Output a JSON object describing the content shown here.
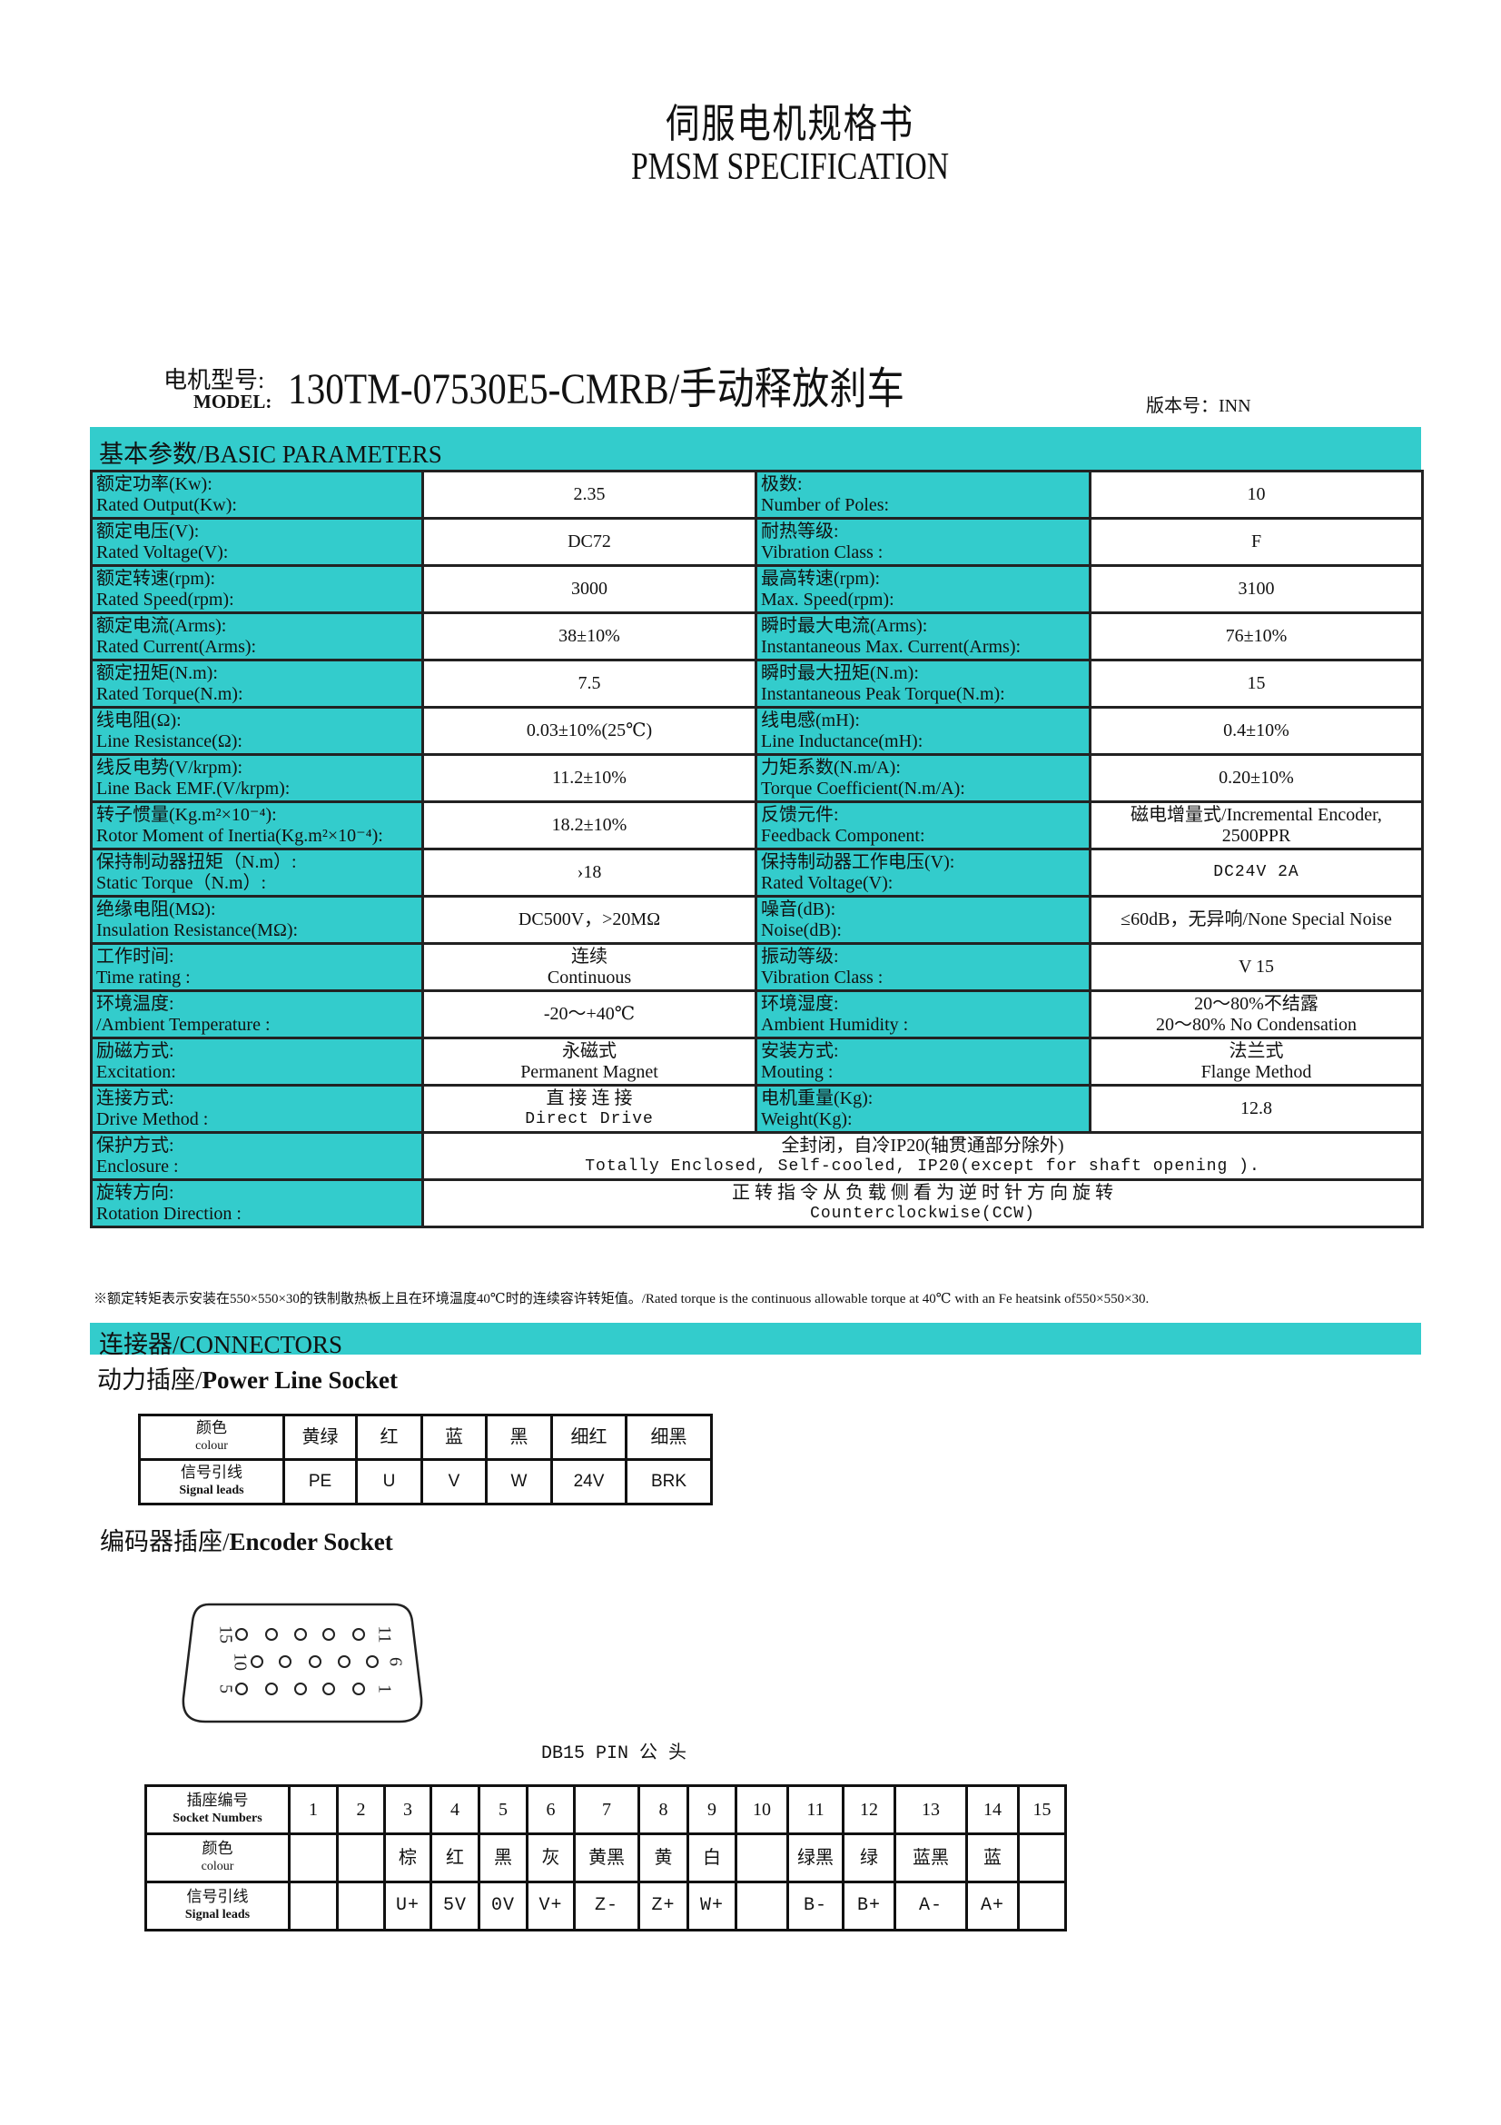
{
  "header": {
    "title": "伺服电机规格书",
    "subtitle": "PMSM SPECIFICATION",
    "model_label": "电机型号:",
    "model_label_en": "MODEL:",
    "model_value": "130TM-07530E5-CMRB/手动释放刹车",
    "version": "版本号：INN"
  },
  "basic": {
    "title": "基本参数/BASIC PARAMETERS",
    "rows": [
      {
        "l_cn": "额定功率(Kw):",
        "l_en": "Rated Output(Kw):",
        "l_val": [
          "2.35"
        ],
        "r_cn": "极数:",
        "r_en": "Number of Poles:",
        "r_val": [
          "10"
        ]
      },
      {
        "l_cn": "额定电压(V):",
        "l_en": "Rated Voltage(V):",
        "l_val": [
          "DC72"
        ],
        "r_cn": "耐热等级:",
        "r_en": "Vibration Class :",
        "r_val": [
          "F"
        ]
      },
      {
        "l_cn": "额定转速(rpm):",
        "l_en": "Rated Speed(rpm):",
        "l_val": [
          "3000"
        ],
        "r_cn": "最高转速(rpm):",
        "r_en": "Max. Speed(rpm):",
        "r_val": [
          "3100"
        ]
      },
      {
        "l_cn": "额定电流(Arms):",
        "l_en": "Rated Current(Arms):",
        "l_val": [
          "38±10%"
        ],
        "r_cn": "瞬时最大电流(Arms):",
        "r_en": "Instantaneous Max. Current(Arms):",
        "r_val": [
          "76±10%"
        ]
      },
      {
        "l_cn": "额定扭矩(N.m):",
        "l_en": "Rated Torque(N.m):",
        "l_val": [
          "7.5"
        ],
        "r_cn": "瞬时最大扭矩(N.m):",
        "r_en": "Instantaneous Peak Torque(N.m):",
        "r_val": [
          "15"
        ]
      },
      {
        "l_cn": "线电阻(Ω):",
        "l_en": "Line Resistance(Ω):",
        "l_val": [
          "0.03±10%(25℃)"
        ],
        "r_cn": "线电感(mH):",
        "r_en": "Line Inductance(mH):",
        "r_val": [
          "0.4±10%"
        ]
      },
      {
        "l_cn": "线反电势(V/krpm):",
        "l_en": "Line Back EMF.(V/krpm):",
        "l_val": [
          "11.2±10%"
        ],
        "r_cn": "力矩系数(N.m/A):",
        "r_en": "Torque Coefficient(N.m/A):",
        "r_val": [
          "0.20±10%"
        ]
      },
      {
        "l_cn": "转子惯量(Kg.m²×10⁻⁴):",
        "l_en": "Rotor Moment of Inertia(Kg.m²×10⁻⁴):",
        "l_val": [
          "18.2±10%"
        ],
        "r_cn": "反馈元件:",
        "r_en": "Feedback Component:",
        "r_val": [
          "磁电增量式/Incremental Encoder,",
          "2500PPR"
        ]
      },
      {
        "l_cn": "保持制动器扭矩（N.m）:",
        "l_en": "Static Torque（N.m）:",
        "l_val": [
          "›18"
        ],
        "r_cn": "保持制动器工作电压(V):",
        "r_en": "Rated Voltage(V):",
        "r_val": [
          "DC24V  2A"
        ],
        "r_mono": true
      },
      {
        "l_cn": "绝缘电阻(MΩ):",
        "l_en": "Insulation Resistance(MΩ):",
        "l_val": [
          "DC500V，>20MΩ"
        ],
        "r_cn": "噪音(dB):",
        "r_en": "Noise(dB):",
        "r_val": [
          "≤60dB，无异响/None Special Noise"
        ]
      },
      {
        "l_cn": "工作时间:",
        "l_en": "Time rating :",
        "l_val": [
          "连续",
          "Continuous"
        ],
        "r_cn": "振动等级:",
        "r_en": "Vibration Class :",
        "r_val": [
          "V 15"
        ]
      },
      {
        "l_cn": "环境温度:",
        "l_en": "/Ambient Temperature :",
        "l_val": [
          "-20～+40℃"
        ],
        "r_cn": "环境湿度:",
        "r_en": "Ambient Humidity :",
        "r_val": [
          "20～80%不结露",
          "20～80% No Condensation"
        ]
      },
      {
        "l_cn": "励磁方式:",
        "l_en": "Excitation:",
        "l_val": [
          "永磁式",
          "Permanent Magnet"
        ],
        "r_cn": "安装方式:",
        "r_en": "Mouting :",
        "r_val": [
          "法兰式",
          "Flange Method"
        ]
      },
      {
        "l_cn": "连接方式:",
        "l_en": "Drive Method :",
        "l_val": [
          "直 接 连 接",
          "Direct Drive"
        ],
        "l_mono": true,
        "r_cn": "电机重量(Kg):",
        "r_en": "Weight(Kg):",
        "r_val": [
          "12.8"
        ]
      },
      {
        "l_cn": "保护方式:",
        "l_en": "Enclosure :",
        "span_val": [
          "全封闭，自冷IP20(轴贯通部分除外)",
          "Totally Enclosed, Self-cooled, IP20(except for shaft opening )."
        ]
      },
      {
        "l_cn": "旋转方向:",
        "l_en": "Rotation Direction :",
        "span_val": [
          "正 转 指 令 从 负 载 侧 看 为 逆 时 针 方 向 旋 转",
          "Counterclockwise(CCW)"
        ]
      }
    ],
    "footnote": "※额定转矩表示安装在550×550×30的铁制散热板上且在环境温度40℃时的连续容许转矩值。/Rated torque is the continuous allowable torque at 40℃ with an Fe heatsink of550×550×30."
  },
  "connectors": {
    "title": "连接器/CONNECTORS",
    "power": {
      "title_cn": "动力插座/",
      "title_en": "Power Line Socket",
      "colour_label_cn": "颜色",
      "colour_label_en": "colour",
      "signal_label_cn": "信号引线",
      "signal_label_en": "Signal leads",
      "colours": [
        "黄绿",
        "红",
        "蓝",
        "黑",
        "细红",
        "细黑"
      ],
      "signals": [
        "PE",
        "U",
        "V",
        "W",
        "24V",
        "BRK"
      ]
    },
    "encoder": {
      "title_cn": "编码器插座/",
      "title_en": "Encoder Socket",
      "diagram_label": "DB15 PIN 公 头",
      "pin_labels": [
        "15",
        "10",
        "5",
        "11",
        "6",
        "1"
      ],
      "socket_label_cn": "插座编号",
      "socket_label_en": "Socket Numbers",
      "colour_label_cn": "颜色",
      "colour_label_en": "colour",
      "signal_label_cn": "信号引线",
      "signal_label_en": "Signal leads",
      "numbers": [
        "1",
        "2",
        "3",
        "4",
        "5",
        "6",
        "7",
        "8",
        "9",
        "10",
        "11",
        "12",
        "13",
        "14",
        "15"
      ],
      "colours": [
        "",
        "",
        "棕",
        "红",
        "黑",
        "灰",
        "黄黑",
        "黄",
        "白",
        "",
        "绿黑",
        "绿",
        "蓝黑",
        "蓝",
        ""
      ],
      "signals": [
        "",
        "",
        "U+",
        "5V",
        "0V",
        "V+",
        "Z-",
        "Z+",
        "W+",
        "",
        "B-",
        "B+",
        "A-",
        "A+",
        ""
      ]
    }
  },
  "colors": {
    "accent_teal": "#33CCCC",
    "border": "#222222"
  }
}
